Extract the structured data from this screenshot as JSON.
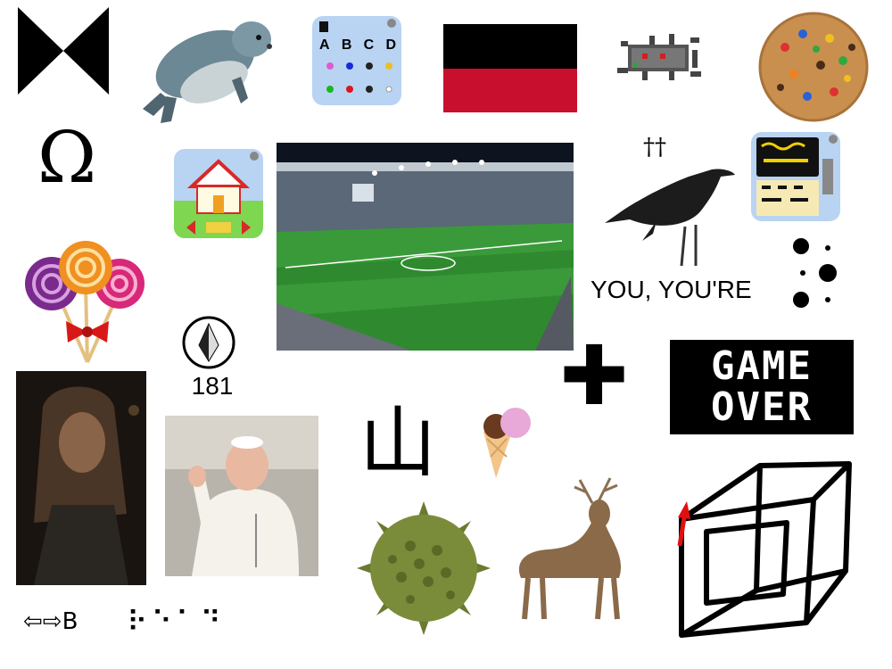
{
  "symbols": {
    "omega": "Ω",
    "bowtie": "⋈",
    "daggers": "††",
    "cross": "✚",
    "mountain": "山",
    "arrows": "⇦⇨B",
    "braille": "⠗⠑⠁⠙"
  },
  "texts": {
    "you_youre": "YOU, YOU'RE",
    "compass_value": "181",
    "game_over_line1": "GAME",
    "game_over_line2": "OVER"
  },
  "tiles": {
    "abcd_letters": [
      "A",
      "B",
      "C",
      "D"
    ]
  },
  "colors": {
    "flag_top": "#000000",
    "flag_bottom": "#c8102e",
    "field_green": "#2f8a2f",
    "tile_bg": "#b9d3f3",
    "crow": "#1c1c1c"
  },
  "icons": {
    "seal": "seal-icon",
    "cookie": "cookie-icon",
    "lollipops": "lollipops-icon",
    "stadium": "stadium-photo",
    "crow": "crow-icon",
    "deer": "deer-icon",
    "tesseract": "tesseract-icon",
    "pope": "pope-photo",
    "woman": "woman-photo",
    "pollen": "pollen-icon",
    "ice_cream": "ice-cream-icon",
    "robot_bug": "pixel-bug-icon",
    "house_tile": "house-tile-icon",
    "keyboard_tile": "keyboard-tile-icon",
    "dots": "braille-dots-icon",
    "compass": "compass-icon"
  }
}
